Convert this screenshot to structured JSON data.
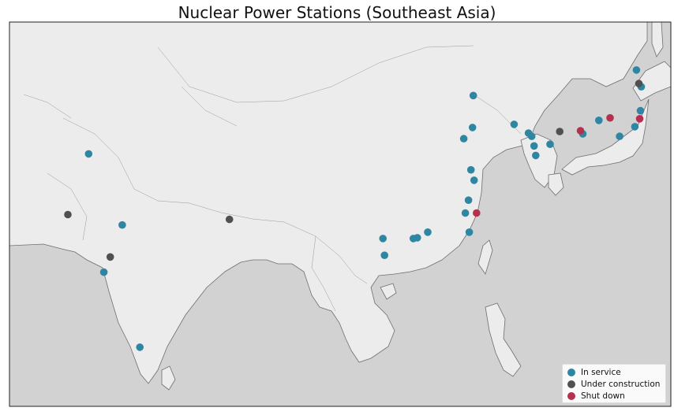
{
  "title": "Nuclear Power Stations (Southeast Asia)",
  "colors": {
    "ocean": "#d2d2d2",
    "land": "#ececec",
    "coast": "#6e6e6e",
    "border": "#9a9a9a",
    "in_service": "#2e86a3",
    "under_construction": "#505050",
    "shut_down": "#b5304f"
  },
  "legend": {
    "in_service": "In service",
    "under_construction": "Under construction",
    "shut_down": "Shut down"
  },
  "stations": [
    {
      "status": "in_service",
      "lon": 71.4,
      "lat": 32.4
    },
    {
      "status": "in_service",
      "lon": 75.6,
      "lat": 23.5
    },
    {
      "status": "in_service",
      "lon": 73.3,
      "lat": 17.6
    },
    {
      "status": "in_service",
      "lon": 77.8,
      "lat": 8.2
    },
    {
      "status": "in_service",
      "lon": 119.5,
      "lat": 39.7
    },
    {
      "status": "in_service",
      "lon": 119.4,
      "lat": 35.7
    },
    {
      "status": "in_service",
      "lon": 118.3,
      "lat": 34.3
    },
    {
      "status": "in_service",
      "lon": 119.2,
      "lat": 30.4
    },
    {
      "status": "in_service",
      "lon": 119.6,
      "lat": 29.1
    },
    {
      "status": "in_service",
      "lon": 118.9,
      "lat": 26.6
    },
    {
      "status": "in_service",
      "lon": 118.5,
      "lat": 25.0
    },
    {
      "status": "in_service",
      "lon": 119.0,
      "lat": 22.6
    },
    {
      "status": "in_service",
      "lon": 113.8,
      "lat": 22.6
    },
    {
      "status": "in_service",
      "lon": 112.5,
      "lat": 21.9
    },
    {
      "status": "in_service",
      "lon": 112.0,
      "lat": 21.8
    },
    {
      "status": "in_service",
      "lon": 108.2,
      "lat": 21.8
    },
    {
      "status": "in_service",
      "lon": 108.4,
      "lat": 19.7
    },
    {
      "status": "in_service",
      "lon": 124.6,
      "lat": 36.1
    },
    {
      "status": "in_service",
      "lon": 126.4,
      "lat": 35.0
    },
    {
      "status": "in_service",
      "lon": 126.8,
      "lat": 34.6
    },
    {
      "status": "in_service",
      "lon": 127.1,
      "lat": 33.4
    },
    {
      "status": "in_service",
      "lon": 127.3,
      "lat": 32.2
    },
    {
      "status": "in_service",
      "lon": 129.1,
      "lat": 33.6
    },
    {
      "status": "in_service",
      "lon": 133.2,
      "lat": 34.9
    },
    {
      "status": "in_service",
      "lon": 135.2,
      "lat": 36.6
    },
    {
      "status": "in_service",
      "lon": 137.8,
      "lat": 34.6
    },
    {
      "status": "in_service",
      "lon": 139.7,
      "lat": 35.8
    },
    {
      "status": "in_service",
      "lon": 140.4,
      "lat": 37.8
    },
    {
      "status": "in_service",
      "lon": 139.9,
      "lat": 42.9
    },
    {
      "status": "in_service",
      "lon": 140.5,
      "lat": 40.8
    },
    {
      "status": "under_construction",
      "lon": 68.8,
      "lat": 24.8
    },
    {
      "status": "under_construction",
      "lon": 74.1,
      "lat": 19.5
    },
    {
      "status": "under_construction",
      "lon": 89.0,
      "lat": 24.2
    },
    {
      "status": "under_construction",
      "lon": 130.3,
      "lat": 35.2
    },
    {
      "status": "under_construction",
      "lon": 140.2,
      "lat": 41.2
    },
    {
      "status": "shut_down",
      "lon": 119.9,
      "lat": 25.0
    },
    {
      "status": "shut_down",
      "lon": 132.9,
      "lat": 35.3
    },
    {
      "status": "shut_down",
      "lon": 136.6,
      "lat": 36.9
    },
    {
      "status": "shut_down",
      "lon": 140.3,
      "lat": 36.8
    }
  ]
}
